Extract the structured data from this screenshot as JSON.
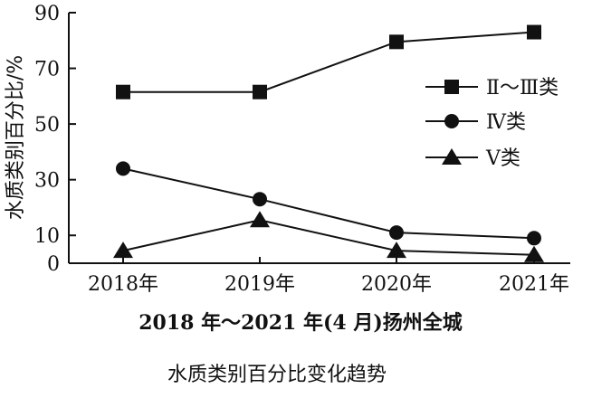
{
  "chart_data": {
    "type": "line",
    "title": "2018 年～2021 年(4 月)扬州全城",
    "subtitle": "水质类别百分比变化趋势",
    "xlabel": "",
    "ylabel": "水质类别百分比/%",
    "categories": [
      "2018年",
      "2019年",
      "2020年",
      "2021年"
    ],
    "ylim": [
      0,
      90
    ],
    "yticks": [
      0,
      10,
      30,
      50,
      70,
      90
    ],
    "grid": false,
    "legend_position": "right",
    "series": [
      {
        "name": "Ⅱ～Ⅲ类",
        "marker": "square",
        "values": [
          61.5,
          61.5,
          79.5,
          83
        ]
      },
      {
        "name": "Ⅳ类",
        "marker": "circle",
        "values": [
          34,
          23,
          11,
          9
        ]
      },
      {
        "name": "Ⅴ类",
        "marker": "triangle",
        "values": [
          4.5,
          15.5,
          4.5,
          3
        ]
      }
    ]
  }
}
